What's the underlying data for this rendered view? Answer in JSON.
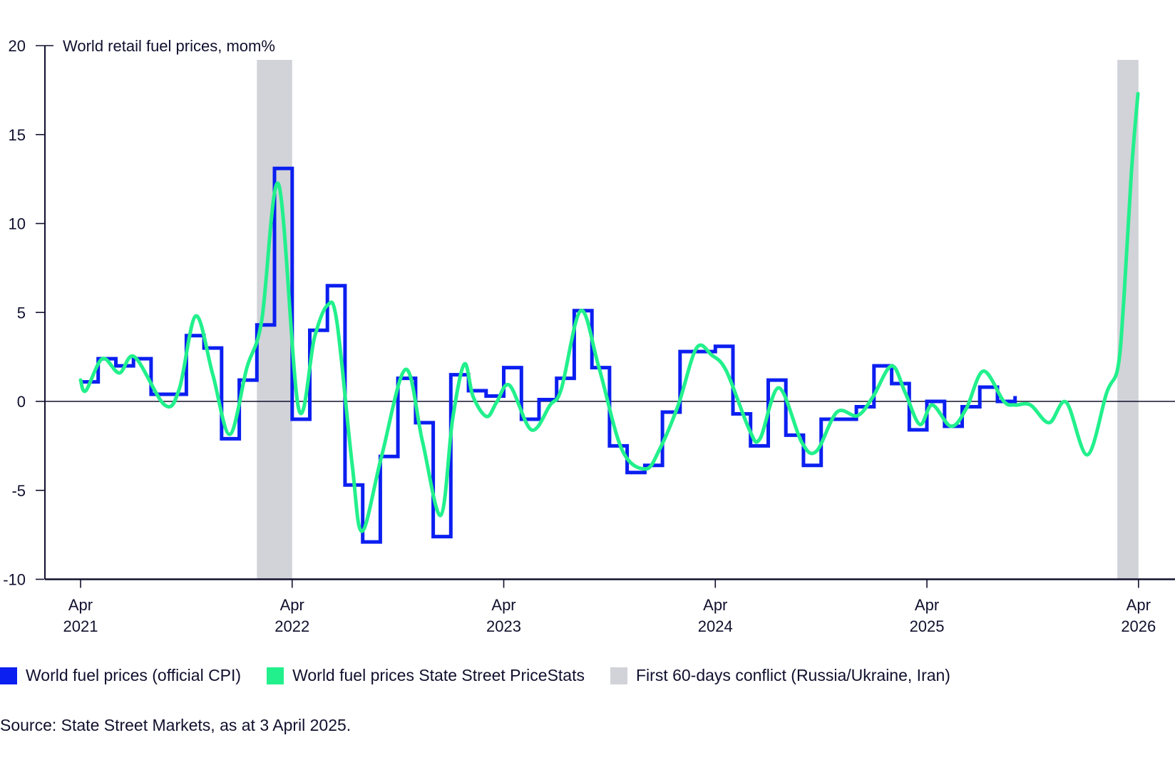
{
  "chart_data": {
    "type": "line",
    "title": "World retail fuel prices, mom%",
    "xlabel": "",
    "ylabel": "",
    "ylim": [
      -10,
      20
    ],
    "yticks": [
      "20",
      "15",
      "10",
      "5",
      "0",
      "-5",
      "-10"
    ],
    "xlim": [
      "2021-04-01",
      "2026-04-30"
    ],
    "xticks": [
      {
        "month": "Apr",
        "year": "2021",
        "date": "2021-04-01"
      },
      {
        "month": "Apr",
        "year": "2022",
        "date": "2022-04-01"
      },
      {
        "month": "Apr",
        "year": "2023",
        "date": "2023-04-01"
      },
      {
        "month": "Apr",
        "year": "2024",
        "date": "2024-04-01"
      },
      {
        "month": "Apr",
        "year": "2025",
        "date": "2025-04-01"
      },
      {
        "month": "Apr",
        "year": "2026",
        "date": "2026-04-01"
      }
    ],
    "grid": false,
    "zero_line": true,
    "legend_position": "bottom",
    "shaded_periods": [
      {
        "start": "2022-02-01",
        "end": "2022-04-01"
      },
      {
        "start": "2026-02-25",
        "end": "2026-03-31"
      }
    ],
    "series": [
      {
        "name": "World fuel prices (official CPI)",
        "style": "step",
        "color": "#0b1ff0",
        "points": [
          [
            "2021-04",
            1.1
          ],
          [
            "2021-05",
            2.4
          ],
          [
            "2021-06",
            2.0
          ],
          [
            "2021-07",
            2.4
          ],
          [
            "2021-08",
            0.4
          ],
          [
            "2021-09",
            0.4
          ],
          [
            "2021-10",
            3.7
          ],
          [
            "2021-11",
            3.0
          ],
          [
            "2021-12",
            -2.1
          ],
          [
            "2022-01",
            1.2
          ],
          [
            "2022-02",
            4.3
          ],
          [
            "2022-03",
            13.1
          ],
          [
            "2022-04",
            -1.0
          ],
          [
            "2022-05",
            4.0
          ],
          [
            "2022-06",
            6.5
          ],
          [
            "2022-07",
            -4.7
          ],
          [
            "2022-08",
            -7.9
          ],
          [
            "2022-09",
            -3.1
          ],
          [
            "2022-10",
            1.3
          ],
          [
            "2022-11",
            -1.2
          ],
          [
            "2022-12",
            -7.6
          ],
          [
            "2023-01",
            1.5
          ],
          [
            "2023-02",
            0.6
          ],
          [
            "2023-03",
            0.3
          ],
          [
            "2023-04",
            1.9
          ],
          [
            "2023-05",
            -1.0
          ],
          [
            "2023-06",
            0.1
          ],
          [
            "2023-07",
            1.3
          ],
          [
            "2023-08",
            5.1
          ],
          [
            "2023-09",
            1.9
          ],
          [
            "2023-10",
            -2.5
          ],
          [
            "2023-11",
            -4.0
          ],
          [
            "2023-12",
            -3.6
          ],
          [
            "2024-01",
            -0.6
          ],
          [
            "2024-02",
            2.8
          ],
          [
            "2024-03",
            2.8
          ],
          [
            "2024-04",
            3.1
          ],
          [
            "2024-05",
            -0.7
          ],
          [
            "2024-06",
            -2.5
          ],
          [
            "2024-07",
            1.2
          ],
          [
            "2024-08",
            -1.9
          ],
          [
            "2024-09",
            -3.6
          ],
          [
            "2024-10",
            -1.0
          ],
          [
            "2024-11",
            -1.0
          ],
          [
            "2024-12",
            -0.3
          ],
          [
            "2025-01",
            2.0
          ],
          [
            "2025-02",
            1.0
          ],
          [
            "2025-03",
            -1.6
          ],
          [
            "2025-04",
            0.0
          ],
          [
            "2025-05",
            -1.4
          ],
          [
            "2025-06",
            -0.3
          ],
          [
            "2025-07",
            0.8
          ],
          [
            "2025-08",
            0.0
          ],
          [
            "2025-09",
            0.3
          ]
        ]
      },
      {
        "name": "World fuel prices State Street PriceStats",
        "style": "smooth",
        "color": "#22f08c",
        "points": [
          [
            "2021-04-01",
            1.2
          ],
          [
            "2021-04-10",
            0.6
          ],
          [
            "2021-05-08",
            2.4
          ],
          [
            "2021-06-07",
            1.6
          ],
          [
            "2021-07-03",
            2.5
          ],
          [
            "2021-08-24",
            -0.2
          ],
          [
            "2021-09-19",
            0.7
          ],
          [
            "2021-10-17",
            4.8
          ],
          [
            "2021-11-16",
            1.5
          ],
          [
            "2021-12-15",
            -1.85
          ],
          [
            "2022-01-14",
            1.9
          ],
          [
            "2022-02-09",
            4.5
          ],
          [
            "2022-03-08",
            12.2
          ],
          [
            "2022-04-12",
            -0.4
          ],
          [
            "2022-05-09",
            3.6
          ],
          [
            "2022-05-31",
            5.4
          ],
          [
            "2022-06-17",
            4.5
          ],
          [
            "2022-07-13",
            -3.5
          ],
          [
            "2022-07-30",
            -7.3
          ],
          [
            "2022-09-03",
            -3.1
          ],
          [
            "2022-10-14",
            1.8
          ],
          [
            "2022-11-13",
            -2.3
          ],
          [
            "2022-12-14",
            -6.4
          ],
          [
            "2023-01-04",
            -1.0
          ],
          [
            "2023-01-24",
            2.1
          ],
          [
            "2023-02-09",
            0.25
          ],
          [
            "2023-03-02",
            -0.85
          ],
          [
            "2023-03-19",
            -0.05
          ],
          [
            "2023-04-11",
            0.9
          ],
          [
            "2023-05-18",
            -1.6
          ],
          [
            "2023-06-20",
            -0.2
          ],
          [
            "2023-07-09",
            0.7
          ],
          [
            "2023-08-12",
            5.1
          ],
          [
            "2023-09-13",
            1.9
          ],
          [
            "2023-10-22",
            -2.7
          ],
          [
            "2023-12-02",
            -3.8
          ],
          [
            "2023-12-26",
            -2.7
          ],
          [
            "2024-01-28",
            -0.2
          ],
          [
            "2024-02-29",
            3.0
          ],
          [
            "2024-03-25",
            2.6
          ],
          [
            "2024-04-20",
            1.7
          ],
          [
            "2024-05-29",
            -1.6
          ],
          [
            "2024-06-17",
            -2.1
          ],
          [
            "2024-07-19",
            0.76
          ],
          [
            "2024-08-28",
            -2.3
          ],
          [
            "2024-09-23",
            -2.8
          ],
          [
            "2024-10-28",
            -0.6
          ],
          [
            "2024-12-03",
            -0.8
          ],
          [
            "2024-12-29",
            0.25
          ],
          [
            "2025-01-31",
            2.0
          ],
          [
            "2025-02-24",
            0.5
          ],
          [
            "2025-03-19",
            -1.3
          ],
          [
            "2025-04-10",
            -0.2
          ],
          [
            "2025-05-12",
            -1.4
          ],
          [
            "2025-06-08",
            -0.4
          ],
          [
            "2025-07-07",
            1.7
          ],
          [
            "2025-08-12",
            0.0
          ],
          [
            "2025-08-31",
            -0.2
          ],
          [
            "2025-09-27",
            -0.2
          ],
          [
            "2025-10-29",
            -1.2
          ],
          [
            "2025-11-28",
            -0.05
          ],
          [
            "2026-01-04",
            -3.0
          ],
          [
            "2026-02-07",
            0.5
          ],
          [
            "2026-02-26",
            1.9
          ],
          [
            "2026-03-06",
            5.7
          ],
          [
            "2026-03-19",
            12.9
          ],
          [
            "2026-03-30",
            17.3
          ]
        ]
      }
    ]
  },
  "legend": {
    "items": [
      {
        "label": "World fuel prices (official CPI)",
        "color": "#0b1ff0"
      },
      {
        "label": "World fuel prices State Street PriceStats",
        "color": "#22f08c"
      },
      {
        "label": "First 60-days conflict (Russia/Ukraine, Iran)",
        "color": "#d1d3d8"
      }
    ]
  },
  "source": "Source: State Street Markets, as at 3 April 2025.",
  "colors": {
    "axis": "#10102e",
    "text": "#10102e"
  }
}
